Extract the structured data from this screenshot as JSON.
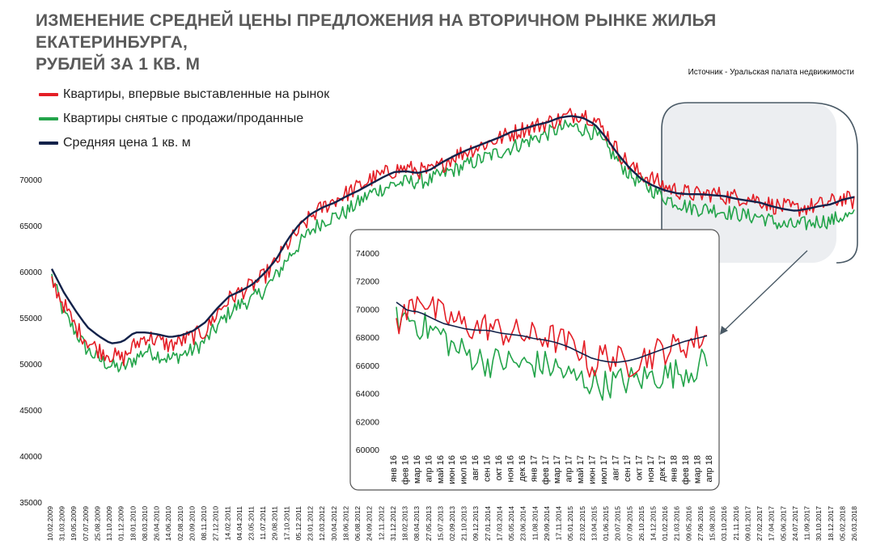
{
  "title_line1": "ИЗМЕНЕНИЕ СРЕДНЕЙ ЦЕНЫ ПРЕДЛОЖЕНИЯ НА ВТОРИЧНОМ РЫНКЕ ЖИЛЬЯ ЕКАТЕРИНБУРГА,",
  "title_line2": "РУБЛЕЙ ЗА 1 КВ. М",
  "source": "Источник - Уральская палата недвижимости",
  "colors": {
    "red": "#e41e26",
    "green": "#23a44a",
    "navy": "#13224a",
    "highlight": "#eceef1"
  },
  "legend": [
    {
      "label": "Квартиры, впервые выставленные на рынок",
      "color": "#e41e26"
    },
    {
      "label": "Квартиры снятые с продажи/проданные",
      "color": "#23a44a"
    },
    {
      "label": "Средняя цена 1 кв. м",
      "color": "#13224a"
    }
  ],
  "chart_data": [
    {
      "type": "line",
      "title": "ИЗМЕНЕНИЕ СРЕДНЕЙ ЦЕНЫ ПРЕДЛОЖЕНИЯ НА ВТОРИЧНОМ РЫНКЕ ЖИЛЬЯ ЕКАТЕРИНБУРГА, РУБЛЕЙ ЗА 1 КВ. М",
      "ylim": [
        35000,
        75000
      ],
      "yticks": [
        35000,
        40000,
        45000,
        50000,
        55000,
        60000,
        65000,
        70000
      ],
      "x_labels": [
        "10.02.2009",
        "31.03.2009",
        "19.05.2009",
        "07.07.2009",
        "25.08.2009",
        "13.10.2009",
        "01.12.2009",
        "18.01.2010",
        "08.03.2010",
        "26.04.2010",
        "14.06.2010",
        "02.08.2010",
        "20.09.2010",
        "08.11.2010",
        "27.12.2010",
        "14.02.2011",
        "04.04.2011",
        "23.05.2011",
        "11.07.2011",
        "29.08.2011",
        "17.10.2011",
        "05.12.2011",
        "23.01.2012",
        "12.03.2012",
        "30.04.2012",
        "18.06.2012",
        "06.08.2012",
        "24.09.2012",
        "12.11.2012",
        "31.12.2012",
        "18.02.2013",
        "08.04.2013",
        "27.05.2013",
        "15.07.2013",
        "02.09.2013",
        "21.10.2013",
        "09.12.2013",
        "27.01.2014",
        "17.03.2014",
        "05.05.2014",
        "23.06.2014",
        "11.08.2014",
        "29.09.2014",
        "17.11.2014",
        "05.01.2015",
        "23.02.2015",
        "13.04.2015",
        "01.06.2015",
        "20.07.2015",
        "07.09.2015",
        "26.10.2015",
        "14.12.2015",
        "01.02.2016",
        "21.03.2016",
        "09.05.2016",
        "27.06.2016",
        "15.08.2016",
        "03.10.2016",
        "21.11.2016",
        "09.01.2017",
        "27.02.2017",
        "17.04.2017",
        "05.06.2017",
        "24.07.2017",
        "11.09.2017",
        "30.10.2017",
        "18.12.2017",
        "05.02.2018",
        "26.03.2018"
      ],
      "series": [
        {
          "name": "Квартиры, впервые выставленные на рынок",
          "color": "#e41e26",
          "values": [
            59000,
            56500,
            54000,
            52500,
            51500,
            51000,
            50500,
            52000,
            53000,
            52500,
            52000,
            52500,
            53000,
            53500,
            55500,
            57000,
            57800,
            58500,
            59500,
            61000,
            63000,
            64500,
            66000,
            67000,
            67800,
            68500,
            69200,
            70000,
            70500,
            71000,
            71200,
            71000,
            70800,
            71500,
            72500,
            73000,
            73500,
            74000,
            74500,
            75000,
            75500,
            75800,
            76200,
            76500,
            77000,
            77200,
            76500,
            75000,
            73000,
            71500,
            70500,
            70000,
            69200,
            68800,
            68500,
            68300,
            68500,
            68200,
            68100,
            68000,
            67800,
            67200,
            67000,
            66800,
            67000,
            67200,
            67500,
            68000,
            67600
          ]
        },
        {
          "name": "Квартиры снятые с продажи/проданные",
          "color": "#23a44a",
          "values": [
            59500,
            55500,
            53500,
            51500,
            50500,
            49800,
            49500,
            50500,
            51500,
            51000,
            50500,
            51000,
            51500,
            52500,
            54000,
            55500,
            56500,
            57000,
            58000,
            59500,
            61500,
            63000,
            64500,
            65500,
            66000,
            66500,
            67500,
            68500,
            69000,
            69500,
            69700,
            69800,
            69900,
            70500,
            71000,
            71500,
            72000,
            72500,
            73000,
            73500,
            74000,
            74500,
            75000,
            75500,
            75800,
            75500,
            75000,
            73500,
            72000,
            70500,
            69500,
            68800,
            68000,
            67500,
            67000,
            66800,
            66800,
            66500,
            66300,
            66000,
            66000,
            65500,
            65000,
            65000,
            65200,
            65500,
            65500,
            66000,
            66000
          ]
        },
        {
          "name": "Средняя цена 1 кв. м",
          "color": "#13224a",
          "values": [
            60300,
            57800,
            55800,
            54000,
            53000,
            52200,
            52400,
            53400,
            53400,
            53200,
            52900,
            53100,
            53600,
            54500,
            56000,
            57300,
            57900,
            58600,
            59800,
            61300,
            63500,
            65200,
            66300,
            67000,
            67500,
            68200,
            68800,
            69500,
            70200,
            70800,
            70900,
            70700,
            71000,
            71800,
            72500,
            73100,
            73600,
            74100,
            74600,
            75200,
            75500,
            75900,
            76200,
            76700,
            76900,
            76700,
            76000,
            74500,
            72700,
            71200,
            70000,
            69300,
            68800,
            68500,
            68400,
            68400,
            68300,
            68200,
            67900,
            67700,
            67500,
            67100,
            66800,
            66600,
            66800,
            67100,
            67300,
            67800,
            68100
          ]
        }
      ]
    },
    {
      "type": "line",
      "title": "",
      "ylim": [
        60000,
        74000
      ],
      "yticks": [
        60000,
        62000,
        64000,
        66000,
        68000,
        70000,
        72000,
        74000
      ],
      "x_labels": [
        "янв 16",
        "фев 16",
        "мар 16",
        "апр 16",
        "май 16",
        "июн 16",
        "июл 16",
        "авг 16",
        "сен 16",
        "окт 16",
        "ноя 16",
        "дек 16",
        "янв 17",
        "фев 17",
        "мар 17",
        "апр 17",
        "май 17",
        "июн 17",
        "июл 17",
        "авг 17",
        "сен 17",
        "окт 17",
        "ноя 17",
        "дек 17",
        "янв 18",
        "фев 18",
        "мар 18",
        "апр 18"
      ],
      "series": [
        {
          "name": "Квартиры, впервые выставленные на рынок",
          "color": "#e41e26",
          "values": [
            69000,
            69800,
            71200,
            70000,
            69500,
            69200,
            68800,
            68700,
            68800,
            68400,
            68300,
            68200,
            68000,
            68100,
            67800,
            67500,
            67200,
            65800,
            66800,
            66500,
            66000,
            66500,
            66700,
            67100,
            67200,
            67500,
            67800,
            68200
          ]
        },
        {
          "name": "Квартиры снятые с продажи/проданные",
          "color": "#23a44a",
          "values": [
            69200,
            69500,
            68900,
            68500,
            68200,
            67200,
            66900,
            66500,
            66200,
            66300,
            66200,
            66000,
            66100,
            66000,
            65800,
            65200,
            65000,
            64800,
            64600,
            64800,
            64900,
            65000,
            65200,
            65300,
            65400,
            65600,
            65800,
            66400
          ]
        },
        {
          "name": "Средняя цена 1 кв. м",
          "color": "#13224a",
          "values": [
            70500,
            69900,
            69800,
            69400,
            69000,
            68800,
            68600,
            68500,
            68500,
            68300,
            68200,
            68100,
            67900,
            67800,
            67600,
            67300,
            66900,
            66500,
            66300,
            66200,
            66300,
            66500,
            66800,
            67100,
            67400,
            67700,
            67900,
            68100
          ]
        }
      ]
    }
  ]
}
